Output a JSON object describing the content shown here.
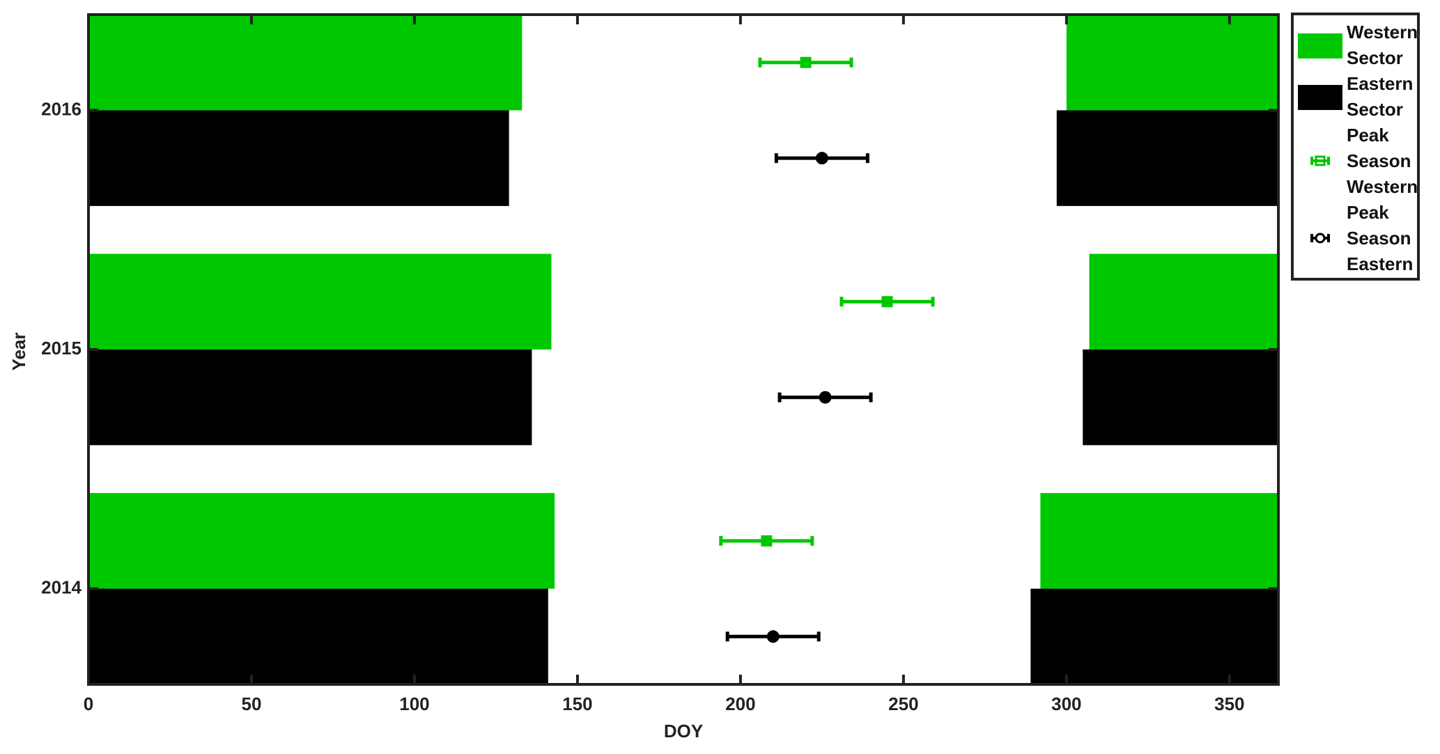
{
  "chart_data": {
    "type": "season-bar-errorbar",
    "x_label": "DOY",
    "y_label": "Year",
    "xlim": [
      0,
      365
    ],
    "xticks": [
      0,
      50,
      100,
      150,
      200,
      250,
      300,
      350
    ],
    "ylim": [
      2013.6,
      2016.4
    ],
    "yticks": [
      2014,
      2015,
      2016
    ],
    "years": [
      2014,
      2015,
      2016
    ],
    "sectors": [
      {
        "name": "Western Sector",
        "color": "#00c800",
        "season_end": [
          143,
          142,
          133
        ],
        "season_start": [
          292,
          307,
          300
        ]
      },
      {
        "name": "Eastern Sector",
        "color": "#000000",
        "season_end": [
          141,
          136,
          129
        ],
        "season_start": [
          289,
          305,
          297
        ]
      }
    ],
    "series": [
      {
        "name": "Peak Season Western",
        "color": "#00c800",
        "marker": "square",
        "values": [
          208,
          245,
          220
        ],
        "errors": [
          14,
          14,
          14
        ]
      },
      {
        "name": "Peak Season Eastern",
        "color": "#000000",
        "marker": "circle",
        "values": [
          210,
          226,
          225
        ],
        "errors": [
          14,
          14,
          14
        ]
      }
    ]
  }
}
